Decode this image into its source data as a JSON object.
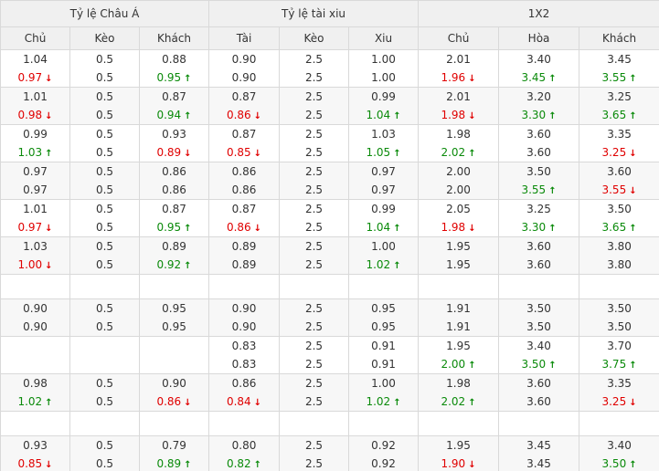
{
  "groups": [
    "Tỷ lệ Châu Á",
    "Tỷ lệ tài xiu",
    "1X2"
  ],
  "columns": [
    "Chủ",
    "Kèo",
    "Khách",
    "Tài",
    "Kèo",
    "Xiu",
    "Chủ",
    "Hòa",
    "Khách"
  ],
  "arrows": {
    "up": "↑",
    "down": "↓"
  },
  "colors": {
    "up": "#0a8a0a",
    "down": "#e00000",
    "header_bg": "#f0f0f0",
    "border": "#d9d9d9"
  },
  "rows": [
    {
      "cells": [
        [
          {
            "v": "1.04"
          },
          {
            "v": "0.97",
            "d": "down"
          }
        ],
        [
          {
            "v": "0.5"
          },
          {
            "v": "0.5"
          }
        ],
        [
          {
            "v": "0.88"
          },
          {
            "v": "0.95",
            "d": "up"
          }
        ],
        [
          {
            "v": "0.90"
          },
          {
            "v": "0.90"
          }
        ],
        [
          {
            "v": "2.5"
          },
          {
            "v": "2.5"
          }
        ],
        [
          {
            "v": "1.00"
          },
          {
            "v": "1.00"
          }
        ],
        [
          {
            "v": "2.01"
          },
          {
            "v": "1.96",
            "d": "down"
          }
        ],
        [
          {
            "v": "3.40"
          },
          {
            "v": "3.45",
            "d": "up"
          }
        ],
        [
          {
            "v": "3.45"
          },
          {
            "v": "3.55",
            "d": "up"
          }
        ]
      ]
    },
    {
      "cells": [
        [
          {
            "v": "1.01"
          },
          {
            "v": "0.98",
            "d": "down"
          }
        ],
        [
          {
            "v": "0.5"
          },
          {
            "v": "0.5"
          }
        ],
        [
          {
            "v": "0.87"
          },
          {
            "v": "0.94",
            "d": "up"
          }
        ],
        [
          {
            "v": "0.87"
          },
          {
            "v": "0.86",
            "d": "down"
          }
        ],
        [
          {
            "v": "2.5"
          },
          {
            "v": "2.5"
          }
        ],
        [
          {
            "v": "0.99"
          },
          {
            "v": "1.04",
            "d": "up"
          }
        ],
        [
          {
            "v": "2.01"
          },
          {
            "v": "1.98",
            "d": "down"
          }
        ],
        [
          {
            "v": "3.20"
          },
          {
            "v": "3.30",
            "d": "up"
          }
        ],
        [
          {
            "v": "3.25"
          },
          {
            "v": "3.65",
            "d": "up"
          }
        ]
      ]
    },
    {
      "cells": [
        [
          {
            "v": "0.99"
          },
          {
            "v": "1.03",
            "d": "up"
          }
        ],
        [
          {
            "v": "0.5"
          },
          {
            "v": "0.5"
          }
        ],
        [
          {
            "v": "0.93"
          },
          {
            "v": "0.89",
            "d": "down"
          }
        ],
        [
          {
            "v": "0.87"
          },
          {
            "v": "0.85",
            "d": "down"
          }
        ],
        [
          {
            "v": "2.5"
          },
          {
            "v": "2.5"
          }
        ],
        [
          {
            "v": "1.03"
          },
          {
            "v": "1.05",
            "d": "up"
          }
        ],
        [
          {
            "v": "1.98"
          },
          {
            "v": "2.02",
            "d": "up"
          }
        ],
        [
          {
            "v": "3.60"
          },
          {
            "v": "3.60"
          }
        ],
        [
          {
            "v": "3.35"
          },
          {
            "v": "3.25",
            "d": "down"
          }
        ]
      ]
    },
    {
      "cells": [
        [
          {
            "v": "0.97"
          },
          {
            "v": "0.97"
          }
        ],
        [
          {
            "v": "0.5"
          },
          {
            "v": "0.5"
          }
        ],
        [
          {
            "v": "0.86"
          },
          {
            "v": "0.86"
          }
        ],
        [
          {
            "v": "0.86"
          },
          {
            "v": "0.86"
          }
        ],
        [
          {
            "v": "2.5"
          },
          {
            "v": "2.5"
          }
        ],
        [
          {
            "v": "0.97"
          },
          {
            "v": "0.97"
          }
        ],
        [
          {
            "v": "2.00"
          },
          {
            "v": "2.00"
          }
        ],
        [
          {
            "v": "3.50"
          },
          {
            "v": "3.55",
            "d": "up"
          }
        ],
        [
          {
            "v": "3.60"
          },
          {
            "v": "3.55",
            "d": "down"
          }
        ]
      ]
    },
    {
      "cells": [
        [
          {
            "v": "1.01"
          },
          {
            "v": "0.97",
            "d": "down"
          }
        ],
        [
          {
            "v": "0.5"
          },
          {
            "v": "0.5"
          }
        ],
        [
          {
            "v": "0.87"
          },
          {
            "v": "0.95",
            "d": "up"
          }
        ],
        [
          {
            "v": "0.87"
          },
          {
            "v": "0.86",
            "d": "down"
          }
        ],
        [
          {
            "v": "2.5"
          },
          {
            "v": "2.5"
          }
        ],
        [
          {
            "v": "0.99"
          },
          {
            "v": "1.04",
            "d": "up"
          }
        ],
        [
          {
            "v": "2.05"
          },
          {
            "v": "1.98",
            "d": "down"
          }
        ],
        [
          {
            "v": "3.25"
          },
          {
            "v": "3.30",
            "d": "up"
          }
        ],
        [
          {
            "v": "3.50"
          },
          {
            "v": "3.65",
            "d": "up"
          }
        ]
      ]
    },
    {
      "cells": [
        [
          {
            "v": "1.03"
          },
          {
            "v": "1.00",
            "d": "down"
          }
        ],
        [
          {
            "v": "0.5"
          },
          {
            "v": "0.5"
          }
        ],
        [
          {
            "v": "0.89"
          },
          {
            "v": "0.92",
            "d": "up"
          }
        ],
        [
          {
            "v": "0.89"
          },
          {
            "v": "0.89"
          }
        ],
        [
          {
            "v": "2.5"
          },
          {
            "v": "2.5"
          }
        ],
        [
          {
            "v": "1.00"
          },
          {
            "v": "1.02",
            "d": "up"
          }
        ],
        [
          {
            "v": "1.95"
          },
          {
            "v": "1.95"
          }
        ],
        [
          {
            "v": "3.60"
          },
          {
            "v": "3.60"
          }
        ],
        [
          {
            "v": "3.80"
          },
          {
            "v": "3.80"
          }
        ]
      ]
    },
    {
      "empty": true
    },
    {
      "cells": [
        [
          {
            "v": "0.90"
          },
          {
            "v": "0.90"
          }
        ],
        [
          {
            "v": "0.5"
          },
          {
            "v": "0.5"
          }
        ],
        [
          {
            "v": "0.95"
          },
          {
            "v": "0.95"
          }
        ],
        [
          {
            "v": "0.90"
          },
          {
            "v": "0.90"
          }
        ],
        [
          {
            "v": "2.5"
          },
          {
            "v": "2.5"
          }
        ],
        [
          {
            "v": "0.95"
          },
          {
            "v": "0.95"
          }
        ],
        [
          {
            "v": "1.91"
          },
          {
            "v": "1.91"
          }
        ],
        [
          {
            "v": "3.50"
          },
          {
            "v": "3.50"
          }
        ],
        [
          {
            "v": "3.50"
          },
          {
            "v": "3.50"
          }
        ]
      ]
    },
    {
      "cells": [
        [],
        [],
        [],
        [
          {
            "v": "0.83"
          },
          {
            "v": "0.83"
          }
        ],
        [
          {
            "v": "2.5"
          },
          {
            "v": "2.5"
          }
        ],
        [
          {
            "v": "0.91"
          },
          {
            "v": "0.91"
          }
        ],
        [
          {
            "v": "1.95"
          },
          {
            "v": "2.00",
            "d": "up"
          }
        ],
        [
          {
            "v": "3.40"
          },
          {
            "v": "3.50",
            "d": "up"
          }
        ],
        [
          {
            "v": "3.70"
          },
          {
            "v": "3.75",
            "d": "up"
          }
        ]
      ]
    },
    {
      "cells": [
        [
          {
            "v": "0.98"
          },
          {
            "v": "1.02",
            "d": "up"
          }
        ],
        [
          {
            "v": "0.5"
          },
          {
            "v": "0.5"
          }
        ],
        [
          {
            "v": "0.90"
          },
          {
            "v": "0.86",
            "d": "down"
          }
        ],
        [
          {
            "v": "0.86"
          },
          {
            "v": "0.84",
            "d": "down"
          }
        ],
        [
          {
            "v": "2.5"
          },
          {
            "v": "2.5"
          }
        ],
        [
          {
            "v": "1.00"
          },
          {
            "v": "1.02",
            "d": "up"
          }
        ],
        [
          {
            "v": "1.98"
          },
          {
            "v": "2.02",
            "d": "up"
          }
        ],
        [
          {
            "v": "3.60"
          },
          {
            "v": "3.60"
          }
        ],
        [
          {
            "v": "3.35"
          },
          {
            "v": "3.25",
            "d": "down"
          }
        ]
      ]
    },
    {
      "empty": true
    },
    {
      "cells": [
        [
          {
            "v": "0.93"
          },
          {
            "v": "0.85",
            "d": "down"
          }
        ],
        [
          {
            "v": "0.5"
          },
          {
            "v": "0.5"
          }
        ],
        [
          {
            "v": "0.79"
          },
          {
            "v": "0.89",
            "d": "up"
          }
        ],
        [
          {
            "v": "0.80"
          },
          {
            "v": "0.82",
            "d": "up"
          }
        ],
        [
          {
            "v": "2.5"
          },
          {
            "v": "2.5"
          }
        ],
        [
          {
            "v": "0.92"
          },
          {
            "v": "0.92"
          }
        ],
        [
          {
            "v": "1.95"
          },
          {
            "v": "1.90",
            "d": "down"
          }
        ],
        [
          {
            "v": "3.45"
          },
          {
            "v": "3.45"
          }
        ],
        [
          {
            "v": "3.40"
          },
          {
            "v": "3.50",
            "d": "up"
          }
        ]
      ]
    }
  ]
}
